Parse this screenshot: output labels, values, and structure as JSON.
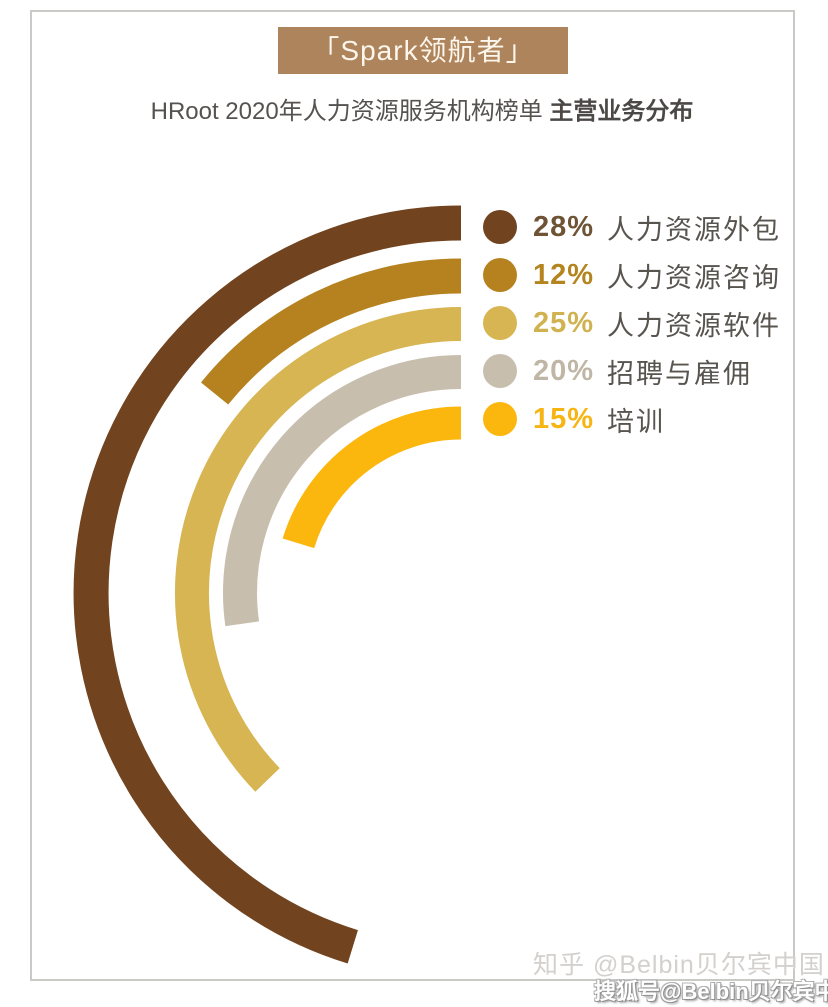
{
  "badge": {
    "label": "「Spark领航者」",
    "bg_color": "#ad845c",
    "text_color": "#fdf6ec"
  },
  "subtitle": {
    "prefix": "HRoot 2020年人力资源服务机构榜单 ",
    "bold": "主营业务分布"
  },
  "chart_data": {
    "type": "bar",
    "variant": "radial-arc",
    "title": "HRoot 2020年人力资源服务机构榜单 主营业务分布",
    "categories": [
      "人力资源外包",
      "人力资源咨询",
      "人力资源软件",
      "招聘与雇佣",
      "培训"
    ],
    "values": [
      28,
      12,
      25,
      20,
      15
    ],
    "unit": "%",
    "colors": [
      "#71431f",
      "#b5821f",
      "#d7b552",
      "#c7beae",
      "#fcb70f"
    ],
    "value_label_colors": [
      "#6e5334",
      "#b4841f",
      "#d0b350",
      "#bfb6a6",
      "#f7b513"
    ],
    "sweep_degrees": [
      163,
      51,
      134,
      98,
      73
    ],
    "arc_start": "top",
    "arc_direction": "counterclockwise",
    "grid": false,
    "legend_position": "top-right"
  },
  "legend": {
    "items": [
      {
        "value_label": "28%",
        "label": "人力资源外包"
      },
      {
        "value_label": "12%",
        "label": "人力资源咨询"
      },
      {
        "value_label": "25%",
        "label": "人力资源软件"
      },
      {
        "value_label": "20%",
        "label": "招聘与雇佣"
      },
      {
        "value_label": "15%",
        "label": "培训"
      }
    ]
  },
  "watermarks": {
    "zhihu": "知乎 @Belbin贝尔宾中国",
    "sohu": "搜狐号@Belbin贝尔宾中国"
  }
}
